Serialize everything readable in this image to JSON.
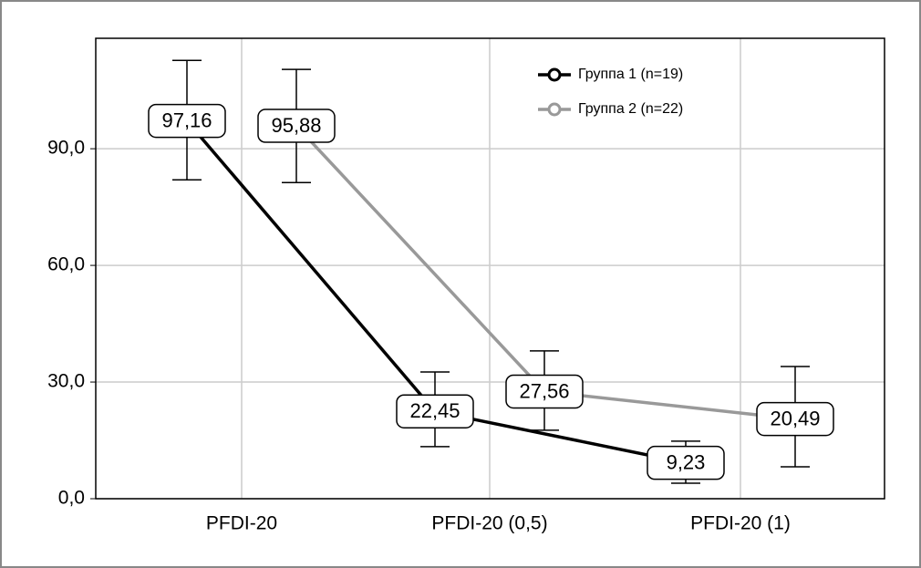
{
  "chart_data": {
    "type": "line",
    "categories": [
      "PFDI-20",
      "PFDI-20 (0,5)",
      "PFDI-20 (1)"
    ],
    "series": [
      {
        "name": "Группа 1 (n=19)",
        "color": "#000000",
        "values": [
          97.16,
          22.45,
          9.23
        ],
        "value_labels": [
          "97,16",
          "22,45",
          "9,23"
        ],
        "err_low": [
          82.0,
          13.4,
          4.0
        ],
        "err_high": [
          112.7,
          32.6,
          14.8
        ]
      },
      {
        "name": "Группа 2 (n=22)",
        "color": "#999999",
        "values": [
          95.88,
          27.56,
          20.49
        ],
        "value_labels": [
          "95,88",
          "27,56",
          "20,49"
        ],
        "err_low": [
          81.3,
          17.6,
          8.2
        ],
        "err_high": [
          110.4,
          38.0,
          34.0
        ]
      }
    ],
    "ylim": [
      0,
      118.4
    ],
    "yticks": [
      {
        "value": 0,
        "label": "0,0"
      },
      {
        "value": 30,
        "label": "30,0"
      },
      {
        "value": 60,
        "label": "60,0"
      },
      {
        "value": 90,
        "label": "90,0"
      }
    ],
    "grid": true,
    "legend": "top-right"
  }
}
